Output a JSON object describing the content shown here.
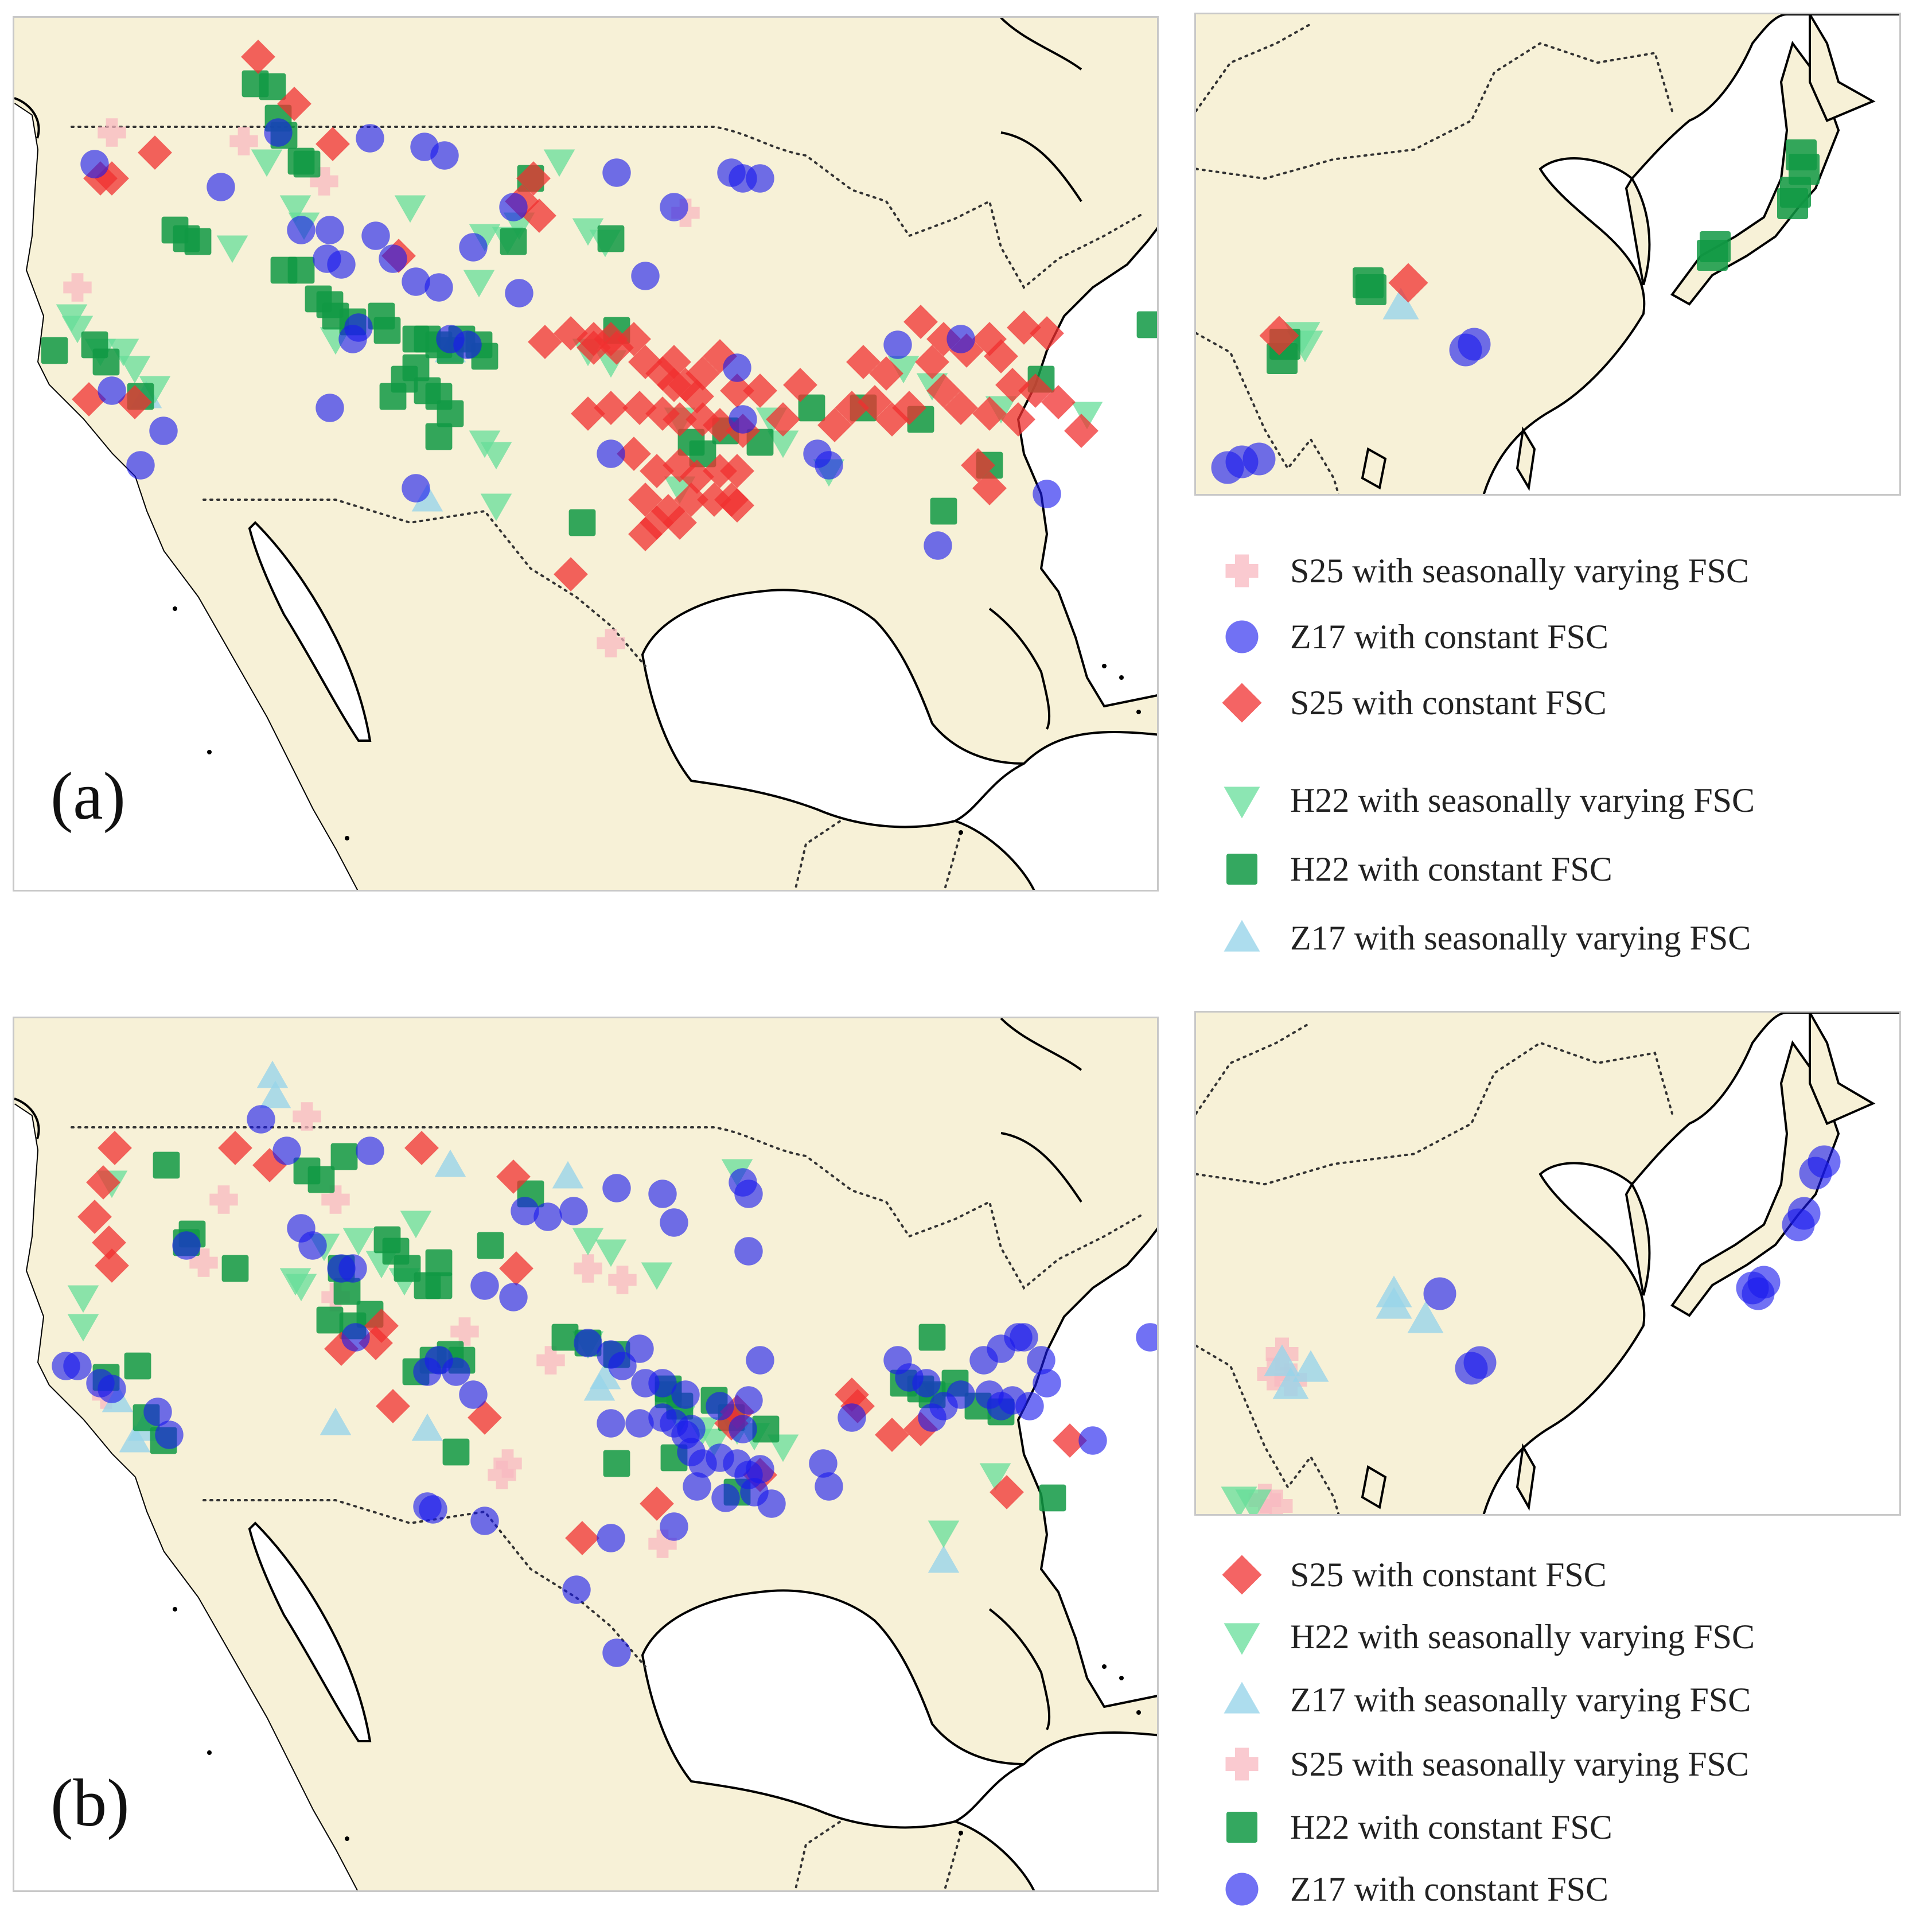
{
  "panels": [
    {
      "label": "(a)",
      "legend": [
        {
          "marker": "pink-cross",
          "label": "S25 with seasonally varying FSC"
        },
        {
          "marker": "blue-circle",
          "label": "Z17 with constant FSC"
        },
        {
          "marker": "red-diamond",
          "label": "S25 with constant FSC"
        },
        {
          "marker": "green-down-triangle",
          "label": "H22 with seasonally varying FSC"
        },
        {
          "marker": "green-square",
          "label": "H22 with constant FSC"
        },
        {
          "marker": "cyan-up-triangle",
          "label": "Z17 with seasonally varying FSC"
        }
      ]
    },
    {
      "label": "(b)",
      "legend": [
        {
          "marker": "red-diamond",
          "label": "S25 with constant FSC"
        },
        {
          "marker": "green-down-triangle",
          "label": "H22 with seasonally varying FSC"
        },
        {
          "marker": "cyan-up-triangle",
          "label": "Z17 with seasonally varying FSC"
        },
        {
          "marker": "pink-cross",
          "label": "S25 with seasonally varying FSC"
        },
        {
          "marker": "green-square",
          "label": "H22 with constant FSC"
        },
        {
          "marker": "blue-circle",
          "label": "Z17 with constant FSC"
        }
      ]
    }
  ],
  "colors": {
    "land": "#f7f1d7",
    "water": "#ffffff",
    "coast": "#000000",
    "pink-cross": "#f8b8c0",
    "blue-circle": "#1a1aee",
    "red-diamond": "#f03030",
    "green-down-triangle": "#66dd99",
    "green-square": "#119944",
    "cyan-up-triangle": "#99d4ea"
  }
}
